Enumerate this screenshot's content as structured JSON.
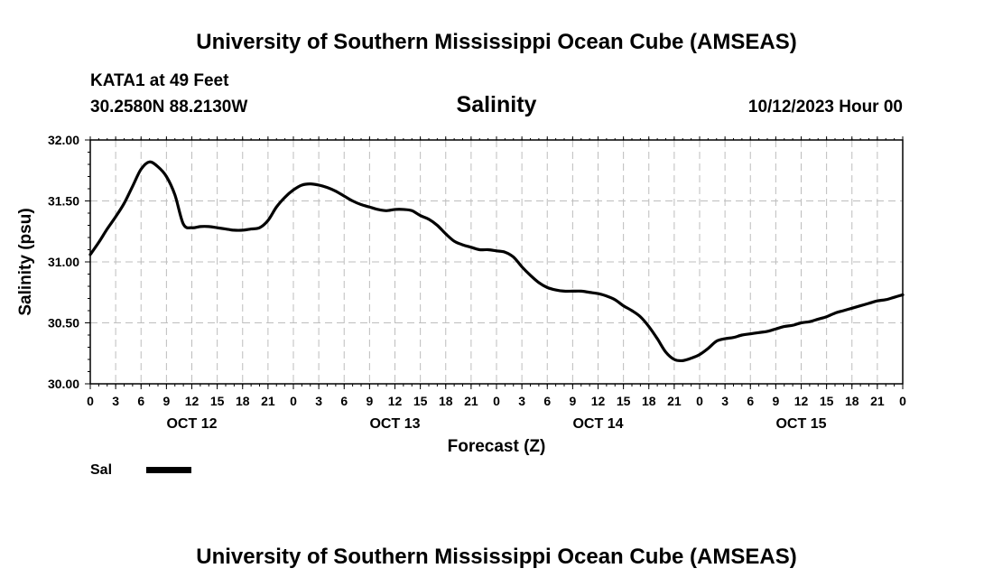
{
  "header": {
    "title": "University of Southern Mississippi Ocean Cube (AMSEAS)",
    "station": "KATA1 at 49 Feet",
    "coords": "30.2580N  88.2130W",
    "run_time": "10/12/2023 Hour 00"
  },
  "footer": {
    "title": "University of Southern Mississippi Ocean Cube (AMSEAS)"
  },
  "chart_data": {
    "type": "line",
    "title": "Salinity",
    "xlabel": "Forecast (Z)",
    "ylabel": "Salinity (psu)",
    "ylim": [
      30.0,
      32.0
    ],
    "xlim_hours": [
      0,
      96
    ],
    "y_ticks": [
      "30.00",
      "30.50",
      "31.00",
      "31.50",
      "32.00"
    ],
    "x_tick_labels": [
      "0",
      "3",
      "6",
      "9",
      "12",
      "15",
      "18",
      "21",
      "0",
      "3",
      "6",
      "9",
      "12",
      "15",
      "18",
      "21",
      "0",
      "3",
      "6",
      "9",
      "12",
      "15",
      "18",
      "21",
      "0",
      "3",
      "6",
      "9",
      "12",
      "15",
      "18",
      "21",
      "0"
    ],
    "day_labels": [
      "OCT 12",
      "OCT 13",
      "OCT 14",
      "OCT 15"
    ],
    "grid": true,
    "legend": {
      "position": "bottom-left",
      "entries": [
        "Sal"
      ]
    },
    "series": [
      {
        "name": "Sal",
        "x": [
          0,
          1,
          2,
          3,
          4,
          5,
          6,
          7,
          8,
          9,
          10,
          11,
          12,
          13,
          14,
          15,
          16,
          17,
          18,
          19,
          20,
          21,
          22,
          23,
          24,
          25,
          26,
          27,
          28,
          29,
          30,
          31,
          32,
          33,
          34,
          35,
          36,
          37,
          38,
          39,
          40,
          41,
          42,
          43,
          44,
          45,
          46,
          47,
          48,
          49,
          50,
          51,
          52,
          53,
          54,
          55,
          56,
          57,
          58,
          59,
          60,
          61,
          62,
          63,
          64,
          65,
          66,
          67,
          68,
          69,
          70,
          71,
          72,
          73,
          74,
          75,
          76,
          77,
          78,
          79,
          80,
          81,
          82,
          83,
          84,
          85,
          86,
          87,
          88,
          89,
          90,
          91,
          92,
          93,
          94,
          95,
          96
        ],
        "values": [
          31.06,
          31.16,
          31.27,
          31.37,
          31.48,
          31.62,
          31.76,
          31.82,
          31.78,
          31.7,
          31.55,
          31.31,
          31.28,
          31.29,
          31.29,
          31.28,
          31.27,
          31.26,
          31.26,
          31.27,
          31.28,
          31.34,
          31.45,
          31.53,
          31.59,
          31.63,
          31.64,
          31.63,
          31.61,
          31.58,
          31.54,
          31.5,
          31.47,
          31.45,
          31.43,
          31.42,
          31.43,
          31.43,
          31.42,
          31.38,
          31.35,
          31.3,
          31.23,
          31.17,
          31.14,
          31.12,
          31.1,
          31.1,
          31.09,
          31.08,
          31.04,
          30.96,
          30.89,
          30.83,
          30.79,
          30.77,
          30.76,
          30.76,
          30.76,
          30.75,
          30.74,
          30.72,
          30.69,
          30.64,
          30.6,
          30.55,
          30.47,
          30.37,
          30.26,
          30.2,
          30.19,
          30.21,
          30.24,
          30.29,
          30.35,
          30.37,
          30.38,
          30.4,
          30.41,
          30.42,
          30.43,
          30.45,
          30.47,
          30.48,
          30.5,
          30.51,
          30.53,
          30.55,
          30.58,
          30.6,
          30.62,
          30.64,
          30.66,
          30.68,
          30.69,
          30.71,
          30.73
        ]
      }
    ]
  }
}
